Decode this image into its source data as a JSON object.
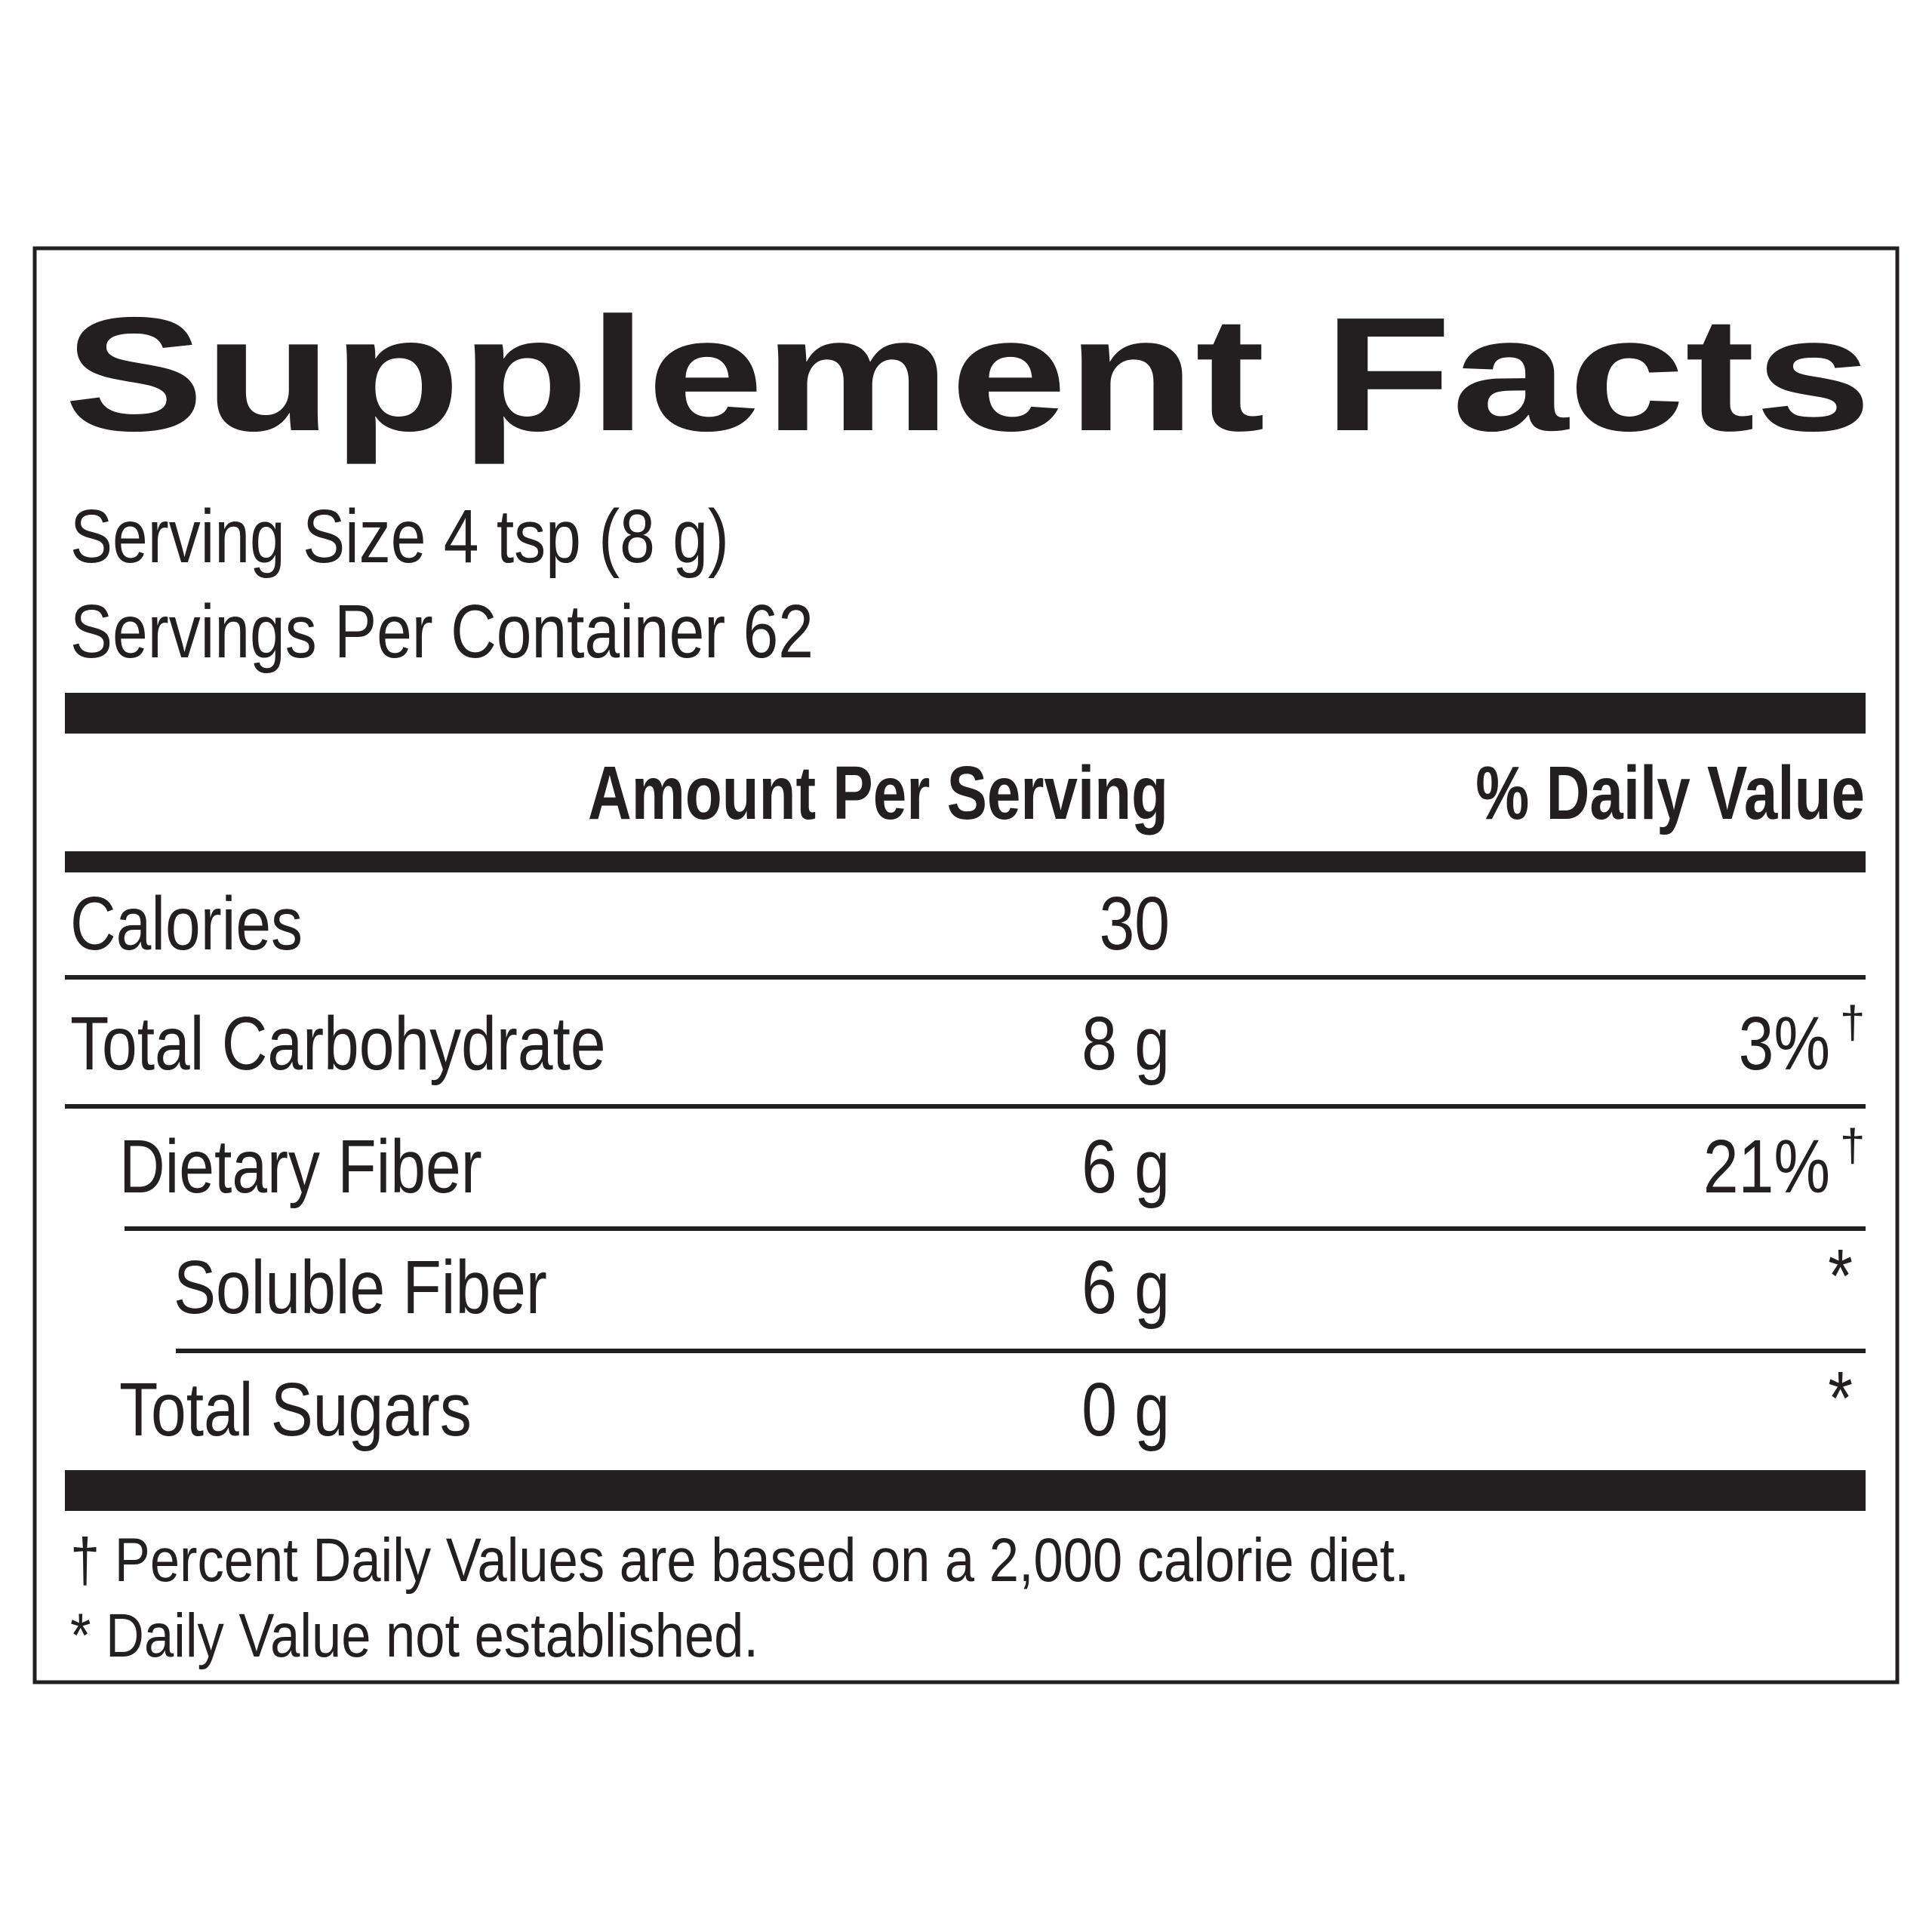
{
  "header": {
    "title": "Supplement Facts",
    "serving_size": "Serving Size 4 tsp (8 g)",
    "servings_per_container": "Servings Per Container 62"
  },
  "table": {
    "columns": [
      "Amount Per Serving",
      "% Daily Value"
    ],
    "rows": [
      {
        "name": "Calories",
        "amount": "30"
      },
      {
        "name": "Total Carbohydrate",
        "amount": "8 g",
        "dv": "3%",
        "dv_mark": "†"
      },
      {
        "name": "Dietary Fiber",
        "amount": "6 g",
        "dv": "21%",
        "dv_mark": "†"
      },
      {
        "name": "Soluble Fiber",
        "amount": "6 g",
        "dv": "*"
      },
      {
        "name": "Total Sugars",
        "amount": "0 g",
        "dv": "*"
      }
    ]
  },
  "footnotes": [
    "† Percent Daily Values are based on a 2,000 calorie diet.",
    "* Daily Value not established."
  ]
}
